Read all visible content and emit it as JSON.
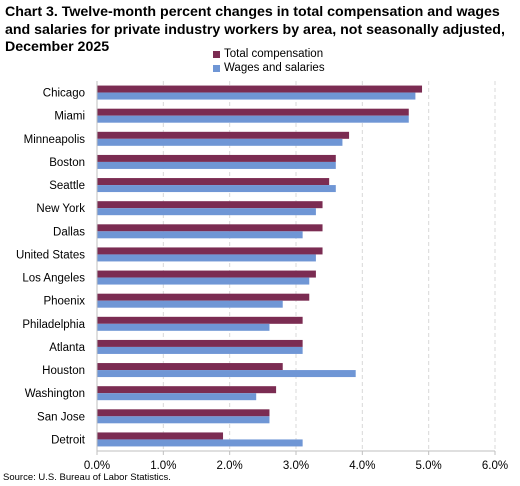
{
  "title_lines": [
    "Chart 3. Twelve-month percent changes in total compensation and wages",
    "and salaries for private industry workers by area, not seasonally adjusted,",
    "December 2025"
  ],
  "source": "Source: U.S. Bureau of Labor Statistics.",
  "colors": {
    "total_compensation": "#7b2c52",
    "wages_and_salaries": "#6f96d5"
  },
  "chart_data": {
    "type": "bar",
    "orientation": "horizontal",
    "title": "Chart 3. Twelve-month percent changes in total compensation and wages and salaries for private industry workers by area, not seasonally adjusted, December 2025",
    "categories": [
      "Chicago",
      "Miami",
      "Minneapolis",
      "Boston",
      "Seattle",
      "New York",
      "Dallas",
      "United States",
      "Los Angeles",
      "Phoenix",
      "Philadelphia",
      "Atlanta",
      "Houston",
      "Washington",
      "San Jose",
      "Detroit"
    ],
    "series": [
      {
        "name": "Total compensation",
        "values": [
          4.9,
          4.7,
          3.8,
          3.6,
          3.5,
          3.4,
          3.4,
          3.4,
          3.3,
          3.2,
          3.1,
          3.1,
          2.8,
          2.7,
          2.6,
          1.9
        ]
      },
      {
        "name": "Wages and salaries",
        "values": [
          4.8,
          4.7,
          3.7,
          3.6,
          3.6,
          3.3,
          3.1,
          3.3,
          3.2,
          2.8,
          2.6,
          3.1,
          3.9,
          2.4,
          2.6,
          3.1
        ]
      }
    ],
    "xlim": [
      0,
      6
    ],
    "x_ticks": [
      "0.0%",
      "1.0%",
      "2.0%",
      "3.0%",
      "4.0%",
      "5.0%",
      "6.0%"
    ],
    "xlabel": "",
    "ylabel": "",
    "grid": "vertical dashed",
    "legend_position": "top"
  }
}
